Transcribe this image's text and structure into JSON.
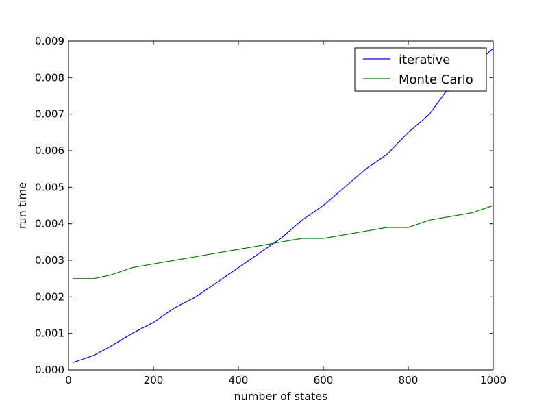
{
  "chart_data": {
    "type": "line",
    "xlabel": "number of states",
    "ylabel": "run time",
    "xlim": [
      0,
      1000
    ],
    "ylim": [
      0,
      0.009
    ],
    "x_ticks": [
      0,
      200,
      400,
      600,
      800,
      1000
    ],
    "x_tick_labels": [
      "0",
      "200",
      "400",
      "600",
      "800",
      "1000"
    ],
    "y_ticks": [
      0,
      0.001,
      0.002,
      0.003,
      0.004,
      0.005,
      0.006,
      0.007,
      0.008,
      0.009
    ],
    "y_tick_labels": [
      "0.000",
      "0.001",
      "0.002",
      "0.003",
      "0.004",
      "0.005",
      "0.006",
      "0.007",
      "0.008",
      "0.009"
    ],
    "grid": false,
    "legend_position": "top-right",
    "x": [
      10,
      60,
      100,
      150,
      200,
      250,
      300,
      350,
      400,
      450,
      500,
      550,
      600,
      650,
      700,
      750,
      800,
      850,
      900,
      950,
      1000
    ],
    "series": [
      {
        "name": "iterative",
        "color": "#0000ff",
        "values": [
          0.0002,
          0.0004,
          0.00065,
          0.001,
          0.0013,
          0.0017,
          0.002,
          0.0024,
          0.0028,
          0.0032,
          0.0036,
          0.0041,
          0.0045,
          0.005,
          0.0055,
          0.0059,
          0.0065,
          0.007,
          0.0078,
          0.0083,
          0.0088
        ]
      },
      {
        "name": "Monte Carlo",
        "color": "#008000",
        "values": [
          0.0025,
          0.0025,
          0.0026,
          0.0028,
          0.0029,
          0.003,
          0.0031,
          0.0032,
          0.0033,
          0.0034,
          0.0035,
          0.0036,
          0.0036,
          0.0037,
          0.0038,
          0.0039,
          0.0039,
          0.0041,
          0.0042,
          0.0043,
          0.0045
        ]
      }
    ]
  }
}
